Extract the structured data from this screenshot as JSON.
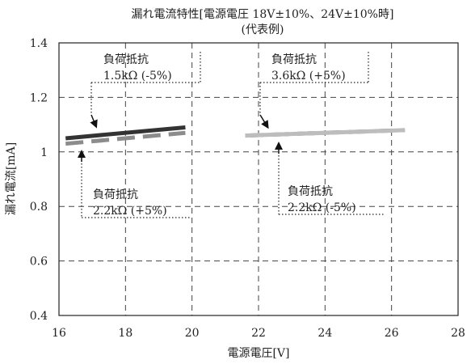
{
  "chart_data": {
    "type": "line",
    "title": "漏れ電流特性[電源電圧 18V±10%、24V±10%時]",
    "subtitle": "(代表例)",
    "xlabel": "電源電圧[V]",
    "ylabel": "漏れ電流[mA]",
    "xlim": [
      16,
      28
    ],
    "ylim": [
      0.4,
      1.4
    ],
    "x_ticks": [
      16,
      18,
      20,
      22,
      24,
      26,
      28
    ],
    "y_ticks": [
      0.4,
      0.6,
      0.8,
      1,
      1.2,
      1.4
    ],
    "x_tick_labels": [
      "16",
      "18",
      "20",
      "22",
      "24",
      "26",
      "28"
    ],
    "y_tick_labels": [
      "0.4",
      "0.6",
      "0.8",
      "1",
      "1.2",
      "1.4"
    ],
    "grid": true,
    "series": [
      {
        "name": "負荷抵抗 1.5kΩ (-5%)",
        "color": "#333333",
        "dash": "solid",
        "x": [
          16.2,
          19.8
        ],
        "y": [
          1.05,
          1.09
        ]
      },
      {
        "name": "負荷抵抗 2.2kΩ (+5%)",
        "color": "#8c8c8c",
        "dash": "dashed",
        "x": [
          16.2,
          19.8
        ],
        "y": [
          1.03,
          1.07
        ]
      },
      {
        "name": "負荷抵抗 3.6kΩ (+5%)",
        "color": "#7a7a7a",
        "dash": "dashed",
        "x": [
          21.6,
          26.4
        ],
        "y": [
          1.06,
          1.08
        ]
      },
      {
        "name": "負荷抵抗 2.2kΩ (-5%)",
        "color": "#bdbdbd",
        "dash": "solid",
        "x": [
          21.6,
          26.4
        ],
        "y": [
          1.06,
          1.08
        ]
      }
    ],
    "annotations": [
      {
        "line1": "負荷抵抗",
        "line2": "1.5kΩ (-5%)",
        "target_x": 17.1,
        "target_y": 1.06,
        "arrow": "down"
      },
      {
        "line1": "負荷抵抗",
        "line2": "2.2kΩ (+5%)",
        "target_x": 16.7,
        "target_y": 1.04,
        "arrow": "up"
      },
      {
        "line1": "負荷抵抗",
        "line2": "3.6kΩ (+5%)",
        "target_x": 22.3,
        "target_y": 1.07,
        "arrow": "down"
      },
      {
        "line1": "負荷抵抗",
        "line2": "2.2kΩ (-5%)",
        "target_x": 22.6,
        "target_y": 1.06,
        "arrow": "up"
      }
    ]
  }
}
